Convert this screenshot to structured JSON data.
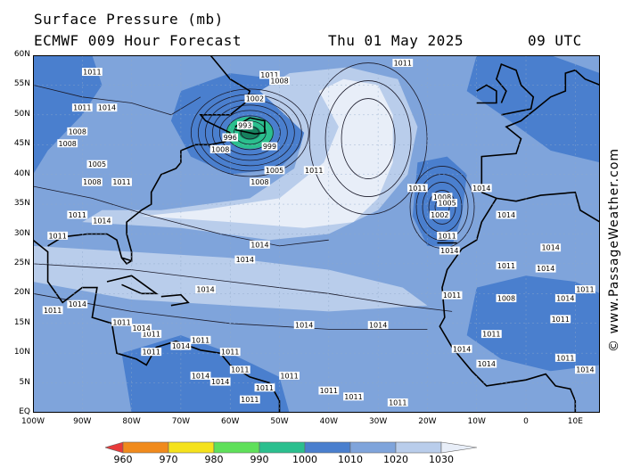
{
  "header": {
    "title": "Surface Pressure (mb)",
    "model": "ECMWF 009 Hour Forecast",
    "date": "Thu 01 May 2025",
    "time": "09 UTC"
  },
  "watermark": "© www.PassageWeather.com",
  "map": {
    "lon_range": [
      -100,
      15
    ],
    "lat_range": [
      0,
      60
    ],
    "lat_labels": [
      "60N",
      "55N",
      "50N",
      "45N",
      "40N",
      "35N",
      "30N",
      "25N",
      "20N",
      "15N",
      "10N",
      "5N",
      "EQ"
    ],
    "lon_labels": [
      "100W",
      "90W",
      "80W",
      "70W",
      "60W",
      "50W",
      "40W",
      "30W",
      "20W",
      "10W",
      "0",
      "10E"
    ],
    "colors": {
      "p990": "#2bbf8e",
      "p1000": "#4a7fce",
      "p1010": "#7fa4db",
      "p1020": "#b9cdeb",
      "p1030": "#e8eef8",
      "land": "#000000"
    },
    "systems": [
      {
        "type": "low",
        "lon": -56,
        "lat": 47,
        "pressure": "993"
      },
      {
        "type": "low",
        "lon": -17,
        "lat": 34.5,
        "pressure": "1002"
      },
      {
        "type": "high",
        "lon": -32,
        "lat": 46,
        "pressure": ""
      }
    ],
    "pressure_labels": [
      {
        "text": "1011",
        "lon": -88,
        "lat": 57
      },
      {
        "text": "1011",
        "lon": -90,
        "lat": 51
      },
      {
        "text": "1014",
        "lon": -85,
        "lat": 51
      },
      {
        "text": "1008",
        "lon": -91,
        "lat": 47
      },
      {
        "text": "1008",
        "lon": -93,
        "lat": 45
      },
      {
        "text": "1005",
        "lon": -87,
        "lat": 41.5
      },
      {
        "text": "1008",
        "lon": -88,
        "lat": 38.5
      },
      {
        "text": "1011",
        "lon": -82,
        "lat": 38.5
      },
      {
        "text": "1011",
        "lon": -91,
        "lat": 33
      },
      {
        "text": "1014",
        "lon": -86,
        "lat": 32
      },
      {
        "text": "1011",
        "lon": -95,
        "lat": 29.5
      },
      {
        "text": "1011",
        "lon": -52,
        "lat": 56.5
      },
      {
        "text": "1008",
        "lon": -50,
        "lat": 55.5
      },
      {
        "text": "1002",
        "lon": -55,
        "lat": 52.5
      },
      {
        "text": "993",
        "lon": -57,
        "lat": 48
      },
      {
        "text": "996",
        "lon": -60,
        "lat": 46
      },
      {
        "text": "1008",
        "lon": -62,
        "lat": 44
      },
      {
        "text": "999",
        "lon": -52,
        "lat": 44.5
      },
      {
        "text": "1005",
        "lon": -51,
        "lat": 40.5
      },
      {
        "text": "1008",
        "lon": -54,
        "lat": 38.5
      },
      {
        "text": "1011",
        "lon": -43,
        "lat": 40.5
      },
      {
        "text": "1011",
        "lon": -25,
        "lat": 58.5
      },
      {
        "text": "1011",
        "lon": -22,
        "lat": 37.5
      },
      {
        "text": "1008",
        "lon": -17,
        "lat": 36
      },
      {
        "text": "1005",
        "lon": -16,
        "lat": 35
      },
      {
        "text": "1002",
        "lon": -17.5,
        "lat": 33
      },
      {
        "text": "1011",
        "lon": -16,
        "lat": 29.5
      },
      {
        "text": "1014",
        "lon": -15.5,
        "lat": 27
      },
      {
        "text": "1014",
        "lon": -9,
        "lat": 37.5
      },
      {
        "text": "1014",
        "lon": -4,
        "lat": 33
      },
      {
        "text": "1014",
        "lon": -54,
        "lat": 28
      },
      {
        "text": "1014",
        "lon": -57,
        "lat": 25.5
      },
      {
        "text": "1014",
        "lon": -65,
        "lat": 20.5
      },
      {
        "text": "1014",
        "lon": -45,
        "lat": 14.5
      },
      {
        "text": "1014",
        "lon": -30,
        "lat": 14.5
      },
      {
        "text": "1011",
        "lon": -15,
        "lat": 19.5
      },
      {
        "text": "1011",
        "lon": -4,
        "lat": 24.5
      },
      {
        "text": "1008",
        "lon": -4,
        "lat": 19
      },
      {
        "text": "1014",
        "lon": 5,
        "lat": 27.5
      },
      {
        "text": "1014",
        "lon": 4,
        "lat": 24
      },
      {
        "text": "1014",
        "lon": 8,
        "lat": 19
      },
      {
        "text": "1011",
        "lon": 12,
        "lat": 20.5
      },
      {
        "text": "1011",
        "lon": 7,
        "lat": 15.5
      },
      {
        "text": "1011",
        "lon": -7,
        "lat": 13
      },
      {
        "text": "1014",
        "lon": -13,
        "lat": 10.5
      },
      {
        "text": "1014",
        "lon": -8,
        "lat": 8
      },
      {
        "text": "1011",
        "lon": 8,
        "lat": 9
      },
      {
        "text": "1014",
        "lon": 12,
        "lat": 7
      },
      {
        "text": "1011",
        "lon": -96,
        "lat": 17
      },
      {
        "text": "1014",
        "lon": -91,
        "lat": 18
      },
      {
        "text": "1011",
        "lon": -82,
        "lat": 15
      },
      {
        "text": "1011",
        "lon": -76,
        "lat": 13
      },
      {
        "text": "1014",
        "lon": -78,
        "lat": 14
      },
      {
        "text": "1014",
        "lon": -70,
        "lat": 11
      },
      {
        "text": "1011",
        "lon": -76,
        "lat": 10
      },
      {
        "text": "1011",
        "lon": -66,
        "lat": 12
      },
      {
        "text": "1011",
        "lon": -60,
        "lat": 10
      },
      {
        "text": "1011",
        "lon": -58,
        "lat": 7
      },
      {
        "text": "1014",
        "lon": -62,
        "lat": 5
      },
      {
        "text": "1011",
        "lon": -53,
        "lat": 4
      },
      {
        "text": "1011",
        "lon": -40,
        "lat": 3.5
      },
      {
        "text": "1011",
        "lon": -35,
        "lat": 2.5
      },
      {
        "text": "1011",
        "lon": -26,
        "lat": 1.5
      },
      {
        "text": "1011",
        "lon": -48,
        "lat": 6
      },
      {
        "text": "1011",
        "lon": -56,
        "lat": 2
      },
      {
        "text": "1014",
        "lon": -66,
        "lat": 6
      }
    ]
  },
  "colorbar": {
    "labels": [
      "960",
      "970",
      "980",
      "990",
      "1000",
      "1010",
      "1020",
      "1030"
    ],
    "colors": [
      "#e83a3a",
      "#f08a1c",
      "#f5e21c",
      "#5fe05a",
      "#2bbf8e",
      "#4a7fce",
      "#7fa4db",
      "#b9cdeb",
      "#e8eef8"
    ]
  }
}
